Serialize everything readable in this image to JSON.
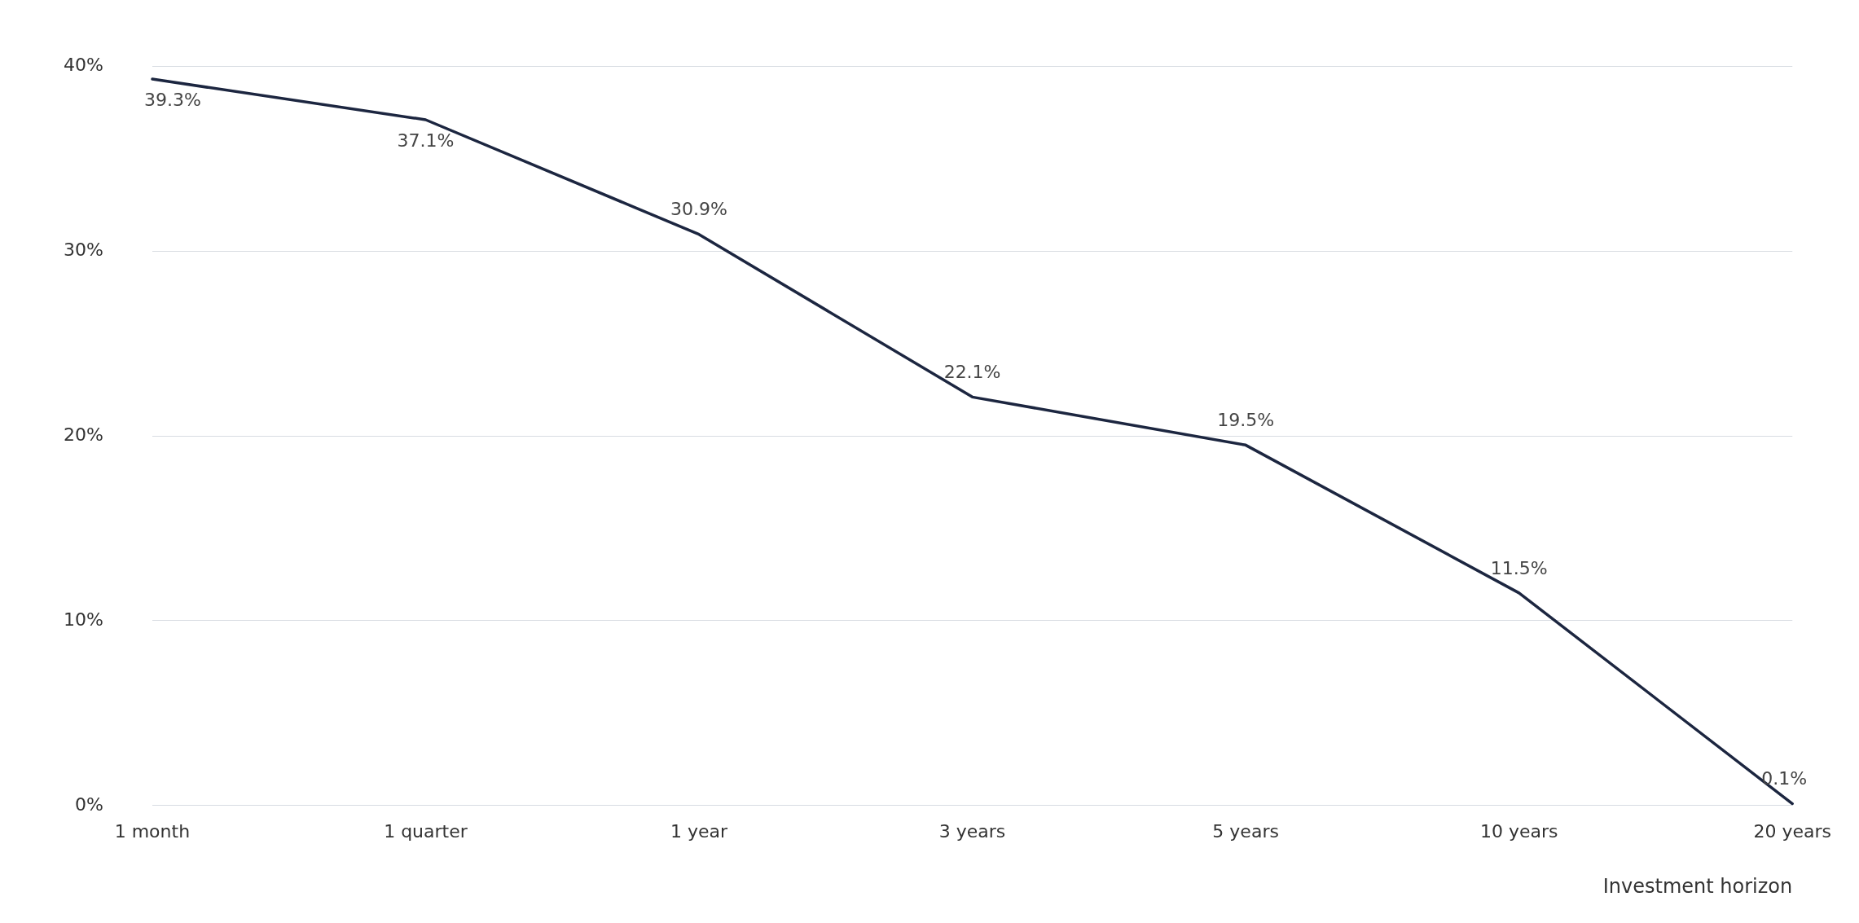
{
  "chart_data": {
    "type": "line",
    "xlabel": "Investment horizon",
    "categories": [
      "1 month",
      "1 quarter",
      "1 year",
      "3 years",
      "5 years",
      "10 years",
      "20 years"
    ],
    "series": [
      {
        "color": "#1c2640",
        "values": [
          39.3,
          37.1,
          30.9,
          22.1,
          19.5,
          11.5,
          0.1
        ],
        "value_labels": [
          "39.3%",
          "37.1%",
          "30.9%",
          "22.1%",
          "19.5%",
          "11.5%",
          "0.1%"
        ]
      }
    ],
    "ylim": [
      0,
      40
    ],
    "yticks": [
      {
        "value": 0,
        "label": "0%"
      },
      {
        "value": 10,
        "label": "10%"
      },
      {
        "value": 20,
        "label": "20%"
      },
      {
        "value": 30,
        "label": "30%"
      },
      {
        "value": 40,
        "label": "40%"
      }
    ],
    "grid": "y",
    "legend": false,
    "marker": "none",
    "line_style": "solid"
  }
}
